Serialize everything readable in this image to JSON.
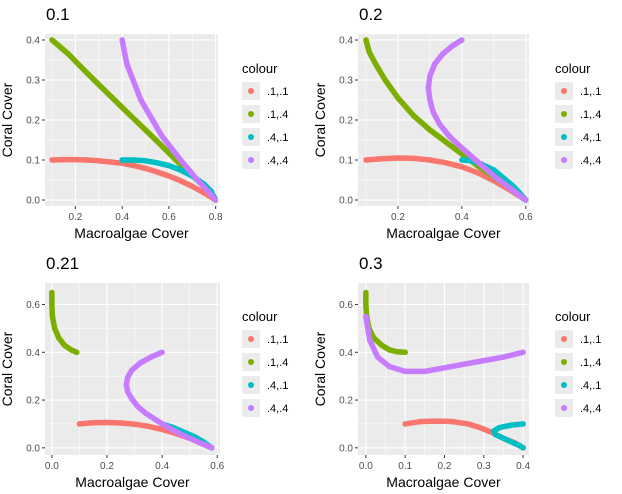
{
  "legend": {
    "title": "colour",
    "entries": [
      {
        "label": ".1,.1",
        "color": "#F8766D"
      },
      {
        "label": ".1,.4",
        "color": "#7CAE00"
      },
      {
        "label": ".4,.1",
        "color": "#00BFC4"
      },
      {
        "label": ".4,.4",
        "color": "#C77CFF"
      }
    ]
  },
  "chart_data": [
    {
      "type": "scatter",
      "title": "0.1",
      "xlabel": "Macroalgae Cover",
      "ylabel": "Coral Cover",
      "xlim": [
        0.07,
        0.81
      ],
      "ylim": [
        -0.015,
        0.415
      ],
      "xticks": [
        0.2,
        0.4,
        0.6,
        0.8
      ],
      "xtick_labels": [
        "0.2",
        "0.4",
        "0.6",
        "0.8"
      ],
      "yticks": [
        0.0,
        0.1,
        0.2,
        0.3,
        0.4
      ],
      "ytick_labels": [
        "0.0",
        "0.1",
        "0.2",
        "0.3",
        "0.4"
      ],
      "grid": true,
      "legend": "right",
      "series": [
        {
          "name": ".1,.1",
          "color": "#F8766D",
          "points": [
            [
              0.1,
              0.1
            ],
            [
              0.15,
              0.101
            ],
            [
              0.2,
              0.101
            ],
            [
              0.25,
              0.1
            ],
            [
              0.3,
              0.098
            ],
            [
              0.35,
              0.095
            ],
            [
              0.4,
              0.092
            ],
            [
              0.45,
              0.086
            ],
            [
              0.5,
              0.079
            ],
            [
              0.55,
              0.07
            ],
            [
              0.6,
              0.06
            ],
            [
              0.65,
              0.048
            ],
            [
              0.7,
              0.034
            ],
            [
              0.75,
              0.018
            ],
            [
              0.8,
              0.0
            ]
          ]
        },
        {
          "name": ".1,.4",
          "color": "#7CAE00",
          "points": [
            [
              0.1,
              0.4
            ],
            [
              0.13,
              0.385
            ],
            [
              0.17,
              0.365
            ],
            [
              0.22,
              0.335
            ],
            [
              0.28,
              0.3
            ],
            [
              0.35,
              0.26
            ],
            [
              0.42,
              0.22
            ],
            [
              0.5,
              0.175
            ],
            [
              0.57,
              0.135
            ],
            [
              0.63,
              0.1
            ],
            [
              0.68,
              0.072
            ],
            [
              0.73,
              0.045
            ],
            [
              0.77,
              0.022
            ],
            [
              0.8,
              0.0
            ]
          ]
        },
        {
          "name": ".4,.1",
          "color": "#00BFC4",
          "points": [
            [
              0.4,
              0.1
            ],
            [
              0.45,
              0.1
            ],
            [
              0.5,
              0.098
            ],
            [
              0.55,
              0.093
            ],
            [
              0.6,
              0.086
            ],
            [
              0.65,
              0.075
            ],
            [
              0.7,
              0.06
            ],
            [
              0.75,
              0.04
            ],
            [
              0.78,
              0.022
            ],
            [
              0.8,
              0.0
            ]
          ]
        },
        {
          "name": ".4,.4",
          "color": "#C77CFF",
          "points": [
            [
              0.4,
              0.4
            ],
            [
              0.41,
              0.37
            ],
            [
              0.42,
              0.34
            ],
            [
              0.44,
              0.31
            ],
            [
              0.46,
              0.28
            ],
            [
              0.48,
              0.25
            ],
            [
              0.51,
              0.22
            ],
            [
              0.54,
              0.19
            ],
            [
              0.57,
              0.16
            ],
            [
              0.61,
              0.13
            ],
            [
              0.65,
              0.1
            ],
            [
              0.69,
              0.072
            ],
            [
              0.73,
              0.045
            ],
            [
              0.77,
              0.02
            ],
            [
              0.8,
              0.0
            ]
          ]
        }
      ]
    },
    {
      "type": "scatter",
      "title": "0.2",
      "xlabel": "Macroalgae Cover",
      "ylabel": "Coral Cover",
      "xlim": [
        0.075,
        0.61
      ],
      "ylim": [
        -0.015,
        0.415
      ],
      "xticks": [
        0.2,
        0.4,
        0.6
      ],
      "xtick_labels": [
        "0.2",
        "0.4",
        "0.6"
      ],
      "yticks": [
        0.0,
        0.1,
        0.2,
        0.3,
        0.4
      ],
      "ytick_labels": [
        "0.0",
        "0.1",
        "0.2",
        "0.3",
        "0.4"
      ],
      "grid": true,
      "legend": "right",
      "series": [
        {
          "name": ".1,.1",
          "color": "#F8766D",
          "points": [
            [
              0.1,
              0.1
            ],
            [
              0.15,
              0.103
            ],
            [
              0.2,
              0.105
            ],
            [
              0.25,
              0.104
            ],
            [
              0.3,
              0.1
            ],
            [
              0.35,
              0.093
            ],
            [
              0.4,
              0.083
            ],
            [
              0.45,
              0.068
            ],
            [
              0.5,
              0.048
            ],
            [
              0.55,
              0.025
            ],
            [
              0.6,
              0.0
            ]
          ]
        },
        {
          "name": ".1,.4",
          "color": "#7CAE00",
          "points": [
            [
              0.1,
              0.4
            ],
            [
              0.11,
              0.37
            ],
            [
              0.13,
              0.34
            ],
            [
              0.16,
              0.3
            ],
            [
              0.2,
              0.255
            ],
            [
              0.25,
              0.21
            ],
            [
              0.3,
              0.175
            ],
            [
              0.35,
              0.145
            ],
            [
              0.4,
              0.115
            ],
            [
              0.45,
              0.085
            ],
            [
              0.5,
              0.058
            ],
            [
              0.55,
              0.03
            ],
            [
              0.6,
              0.0
            ]
          ]
        },
        {
          "name": ".4,.1",
          "color": "#00BFC4",
          "points": [
            [
              0.4,
              0.1
            ],
            [
              0.43,
              0.098
            ],
            [
              0.46,
              0.09
            ],
            [
              0.5,
              0.075
            ],
            [
              0.53,
              0.055
            ],
            [
              0.56,
              0.035
            ],
            [
              0.58,
              0.018
            ],
            [
              0.6,
              0.0
            ]
          ]
        },
        {
          "name": ".4,.4",
          "color": "#C77CFF",
          "points": [
            [
              0.4,
              0.4
            ],
            [
              0.37,
              0.385
            ],
            [
              0.34,
              0.365
            ],
            [
              0.315,
              0.34
            ],
            [
              0.3,
              0.31
            ],
            [
              0.295,
              0.28
            ],
            [
              0.3,
              0.25
            ],
            [
              0.31,
              0.22
            ],
            [
              0.33,
              0.19
            ],
            [
              0.36,
              0.16
            ],
            [
              0.4,
              0.13
            ],
            [
              0.45,
              0.095
            ],
            [
              0.5,
              0.06
            ],
            [
              0.55,
              0.03
            ],
            [
              0.6,
              0.0
            ]
          ]
        }
      ]
    },
    {
      "type": "scatter",
      "title": "0.21",
      "xlabel": "Macroalgae Cover",
      "ylabel": "Coral Cover",
      "xlim": [
        -0.025,
        0.61
      ],
      "ylim": [
        -0.03,
        0.69
      ],
      "xticks": [
        0.0,
        0.2,
        0.4,
        0.6
      ],
      "xtick_labels": [
        "0.0",
        "0.2",
        "0.4",
        "0.6"
      ],
      "yticks": [
        0.0,
        0.2,
        0.4,
        0.6
      ],
      "ytick_labels": [
        "0.0",
        "0.2",
        "0.4",
        "0.6"
      ],
      "grid": true,
      "legend": "right",
      "series": [
        {
          "name": ".1,.1",
          "color": "#F8766D",
          "points": [
            [
              0.1,
              0.1
            ],
            [
              0.15,
              0.105
            ],
            [
              0.2,
              0.106
            ],
            [
              0.25,
              0.104
            ],
            [
              0.3,
              0.099
            ],
            [
              0.35,
              0.09
            ],
            [
              0.4,
              0.077
            ],
            [
              0.45,
              0.06
            ],
            [
              0.5,
              0.04
            ],
            [
              0.54,
              0.02
            ],
            [
              0.58,
              0.0
            ]
          ]
        },
        {
          "name": ".1,.4",
          "color": "#7CAE00",
          "points": [
            [
              0.0,
              0.65
            ],
            [
              0.0,
              0.6
            ],
            [
              0.002,
              0.55
            ],
            [
              0.01,
              0.5
            ],
            [
              0.025,
              0.46
            ],
            [
              0.045,
              0.43
            ],
            [
              0.07,
              0.41
            ],
            [
              0.09,
              0.4
            ]
          ]
        },
        {
          "name": ".4,.1",
          "color": "#00BFC4",
          "points": [
            [
              0.4,
              0.1
            ],
            [
              0.44,
              0.085
            ],
            [
              0.48,
              0.065
            ],
            [
              0.52,
              0.045
            ],
            [
              0.55,
              0.025
            ],
            [
              0.58,
              0.0
            ]
          ]
        },
        {
          "name": ".4,.4",
          "color": "#C77CFF",
          "points": [
            [
              0.4,
              0.4
            ],
            [
              0.36,
              0.38
            ],
            [
              0.32,
              0.355
            ],
            [
              0.29,
              0.325
            ],
            [
              0.275,
              0.295
            ],
            [
              0.27,
              0.265
            ],
            [
              0.275,
              0.235
            ],
            [
              0.29,
              0.205
            ],
            [
              0.31,
              0.175
            ],
            [
              0.34,
              0.145
            ],
            [
              0.38,
              0.115
            ],
            [
              0.43,
              0.08
            ],
            [
              0.48,
              0.05
            ],
            [
              0.53,
              0.025
            ],
            [
              0.58,
              0.0
            ]
          ]
        }
      ]
    },
    {
      "type": "scatter",
      "title": "0.3",
      "xlabel": "Macroalgae Cover",
      "ylabel": "Coral Cover",
      "xlim": [
        -0.02,
        0.415
      ],
      "ylim": [
        -0.03,
        0.69
      ],
      "xticks": [
        0.0,
        0.1,
        0.2,
        0.3,
        0.4
      ],
      "xtick_labels": [
        "0.0",
        "0.1",
        "0.2",
        "0.3",
        "0.4"
      ],
      "yticks": [
        0.0,
        0.2,
        0.4,
        0.6
      ],
      "ytick_labels": [
        "0.0",
        "0.2",
        "0.4",
        "0.6"
      ],
      "grid": true,
      "legend": "right",
      "series": [
        {
          "name": ".1,.1",
          "color": "#F8766D",
          "points": [
            [
              0.1,
              0.1
            ],
            [
              0.14,
              0.11
            ],
            [
              0.18,
              0.112
            ],
            [
              0.22,
              0.11
            ],
            [
              0.26,
              0.1
            ],
            [
              0.29,
              0.085
            ],
            [
              0.32,
              0.065
            ],
            [
              0.35,
              0.04
            ],
            [
              0.38,
              0.02
            ],
            [
              0.4,
              0.0
            ]
          ]
        },
        {
          "name": ".1,.4",
          "color": "#7CAE00",
          "points": [
            [
              0.0,
              0.65
            ],
            [
              0.0,
              0.6
            ],
            [
              0.002,
              0.55
            ],
            [
              0.008,
              0.5
            ],
            [
              0.02,
              0.46
            ],
            [
              0.04,
              0.43
            ],
            [
              0.06,
              0.41
            ],
            [
              0.08,
              0.402
            ],
            [
              0.1,
              0.4
            ]
          ]
        },
        {
          "name": ".4,.1",
          "color": "#00BFC4",
          "points": [
            [
              0.4,
              0.1
            ],
            [
              0.37,
              0.095
            ],
            [
              0.34,
              0.085
            ],
            [
              0.325,
              0.07
            ],
            [
              0.33,
              0.055
            ],
            [
              0.35,
              0.04
            ],
            [
              0.37,
              0.025
            ],
            [
              0.39,
              0.01
            ],
            [
              0.4,
              0.0
            ]
          ]
        },
        {
          "name": ".4,.4",
          "color": "#C77CFF",
          "points": [
            [
              0.0,
              0.55
            ],
            [
              0.01,
              0.45
            ],
            [
              0.03,
              0.38
            ],
            [
              0.06,
              0.34
            ],
            [
              0.1,
              0.32
            ],
            [
              0.15,
              0.32
            ],
            [
              0.2,
              0.335
            ],
            [
              0.25,
              0.35
            ],
            [
              0.3,
              0.365
            ],
            [
              0.35,
              0.38
            ],
            [
              0.4,
              0.4
            ]
          ]
        }
      ]
    }
  ]
}
